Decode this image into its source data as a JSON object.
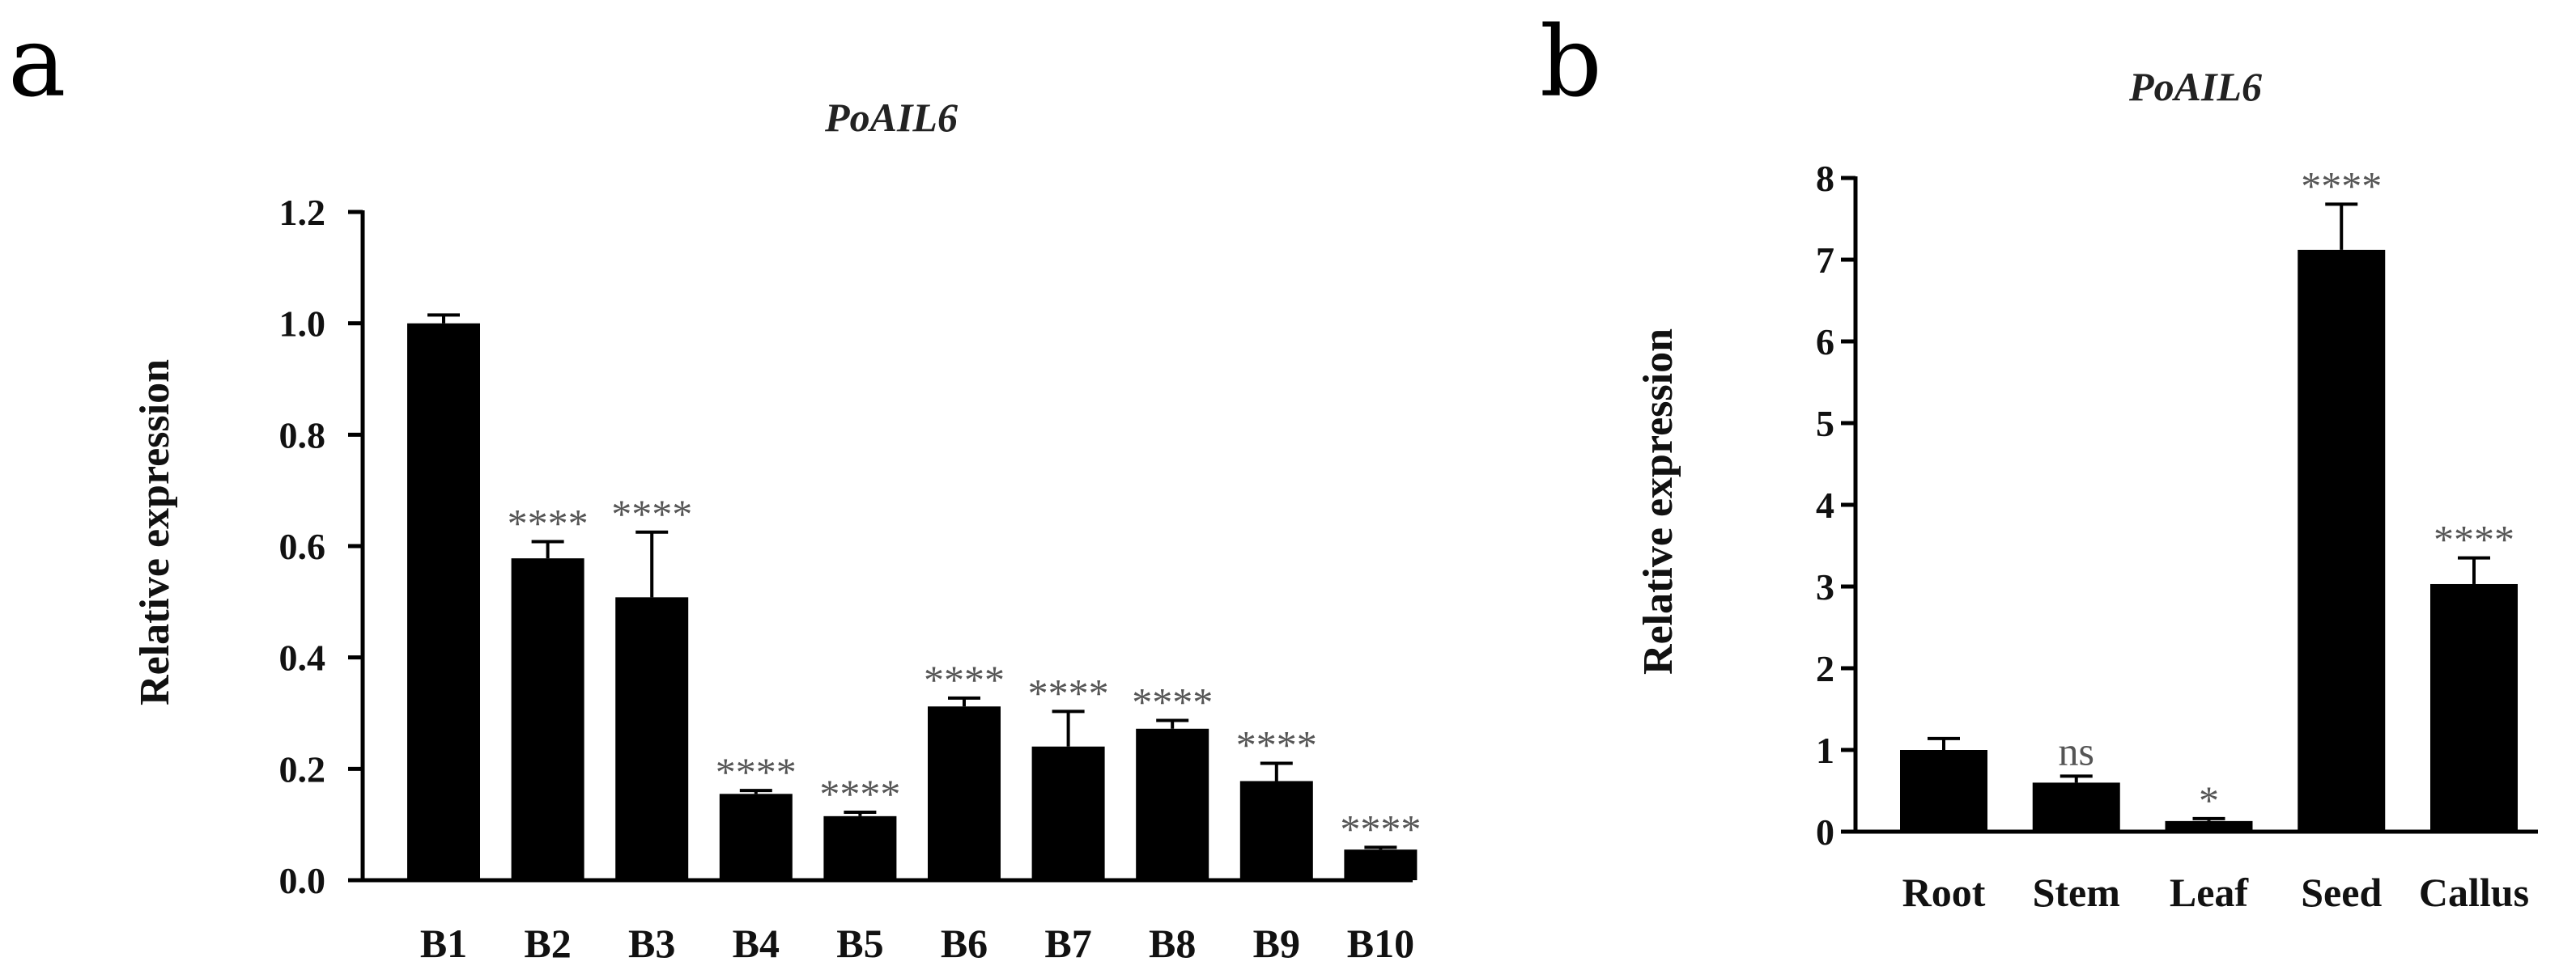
{
  "panels": [
    {
      "letter": "a"
    },
    {
      "letter": "b"
    }
  ],
  "chart_data": [
    {
      "type": "bar",
      "title": "PoAIL6",
      "xlabel": "",
      "ylabel": "Relative expression",
      "ylim": [
        0,
        1.2
      ],
      "yticks": [
        "0.0",
        "0.2",
        "0.4",
        "0.6",
        "0.8",
        "1.0",
        "1.2"
      ],
      "yticks_values": [
        0,
        0.2,
        0.4,
        0.6,
        0.8,
        1.0,
        1.2
      ],
      "categories": [
        "B1",
        "B2",
        "B3",
        "B4",
        "B5",
        "B6",
        "B7",
        "B8",
        "B9",
        "B10"
      ],
      "values": [
        1.0,
        0.578,
        0.508,
        0.155,
        0.115,
        0.312,
        0.24,
        0.272,
        0.178,
        0.055
      ],
      "errors": [
        0.015,
        0.03,
        0.117,
        0.006,
        0.007,
        0.015,
        0.063,
        0.015,
        0.032,
        0.004
      ],
      "significance": [
        "",
        "****",
        "****",
        "****",
        "****",
        "****",
        "****",
        "****",
        "****",
        "****"
      ],
      "bar_color": "#000000"
    },
    {
      "type": "bar",
      "title": "PoAIL6",
      "xlabel": "",
      "ylabel": "Relative expression",
      "ylim": [
        0,
        8
      ],
      "yticks": [
        "0",
        "1",
        "2",
        "3",
        "4",
        "5",
        "6",
        "7",
        "8"
      ],
      "yticks_values": [
        0,
        1,
        2,
        3,
        4,
        5,
        6,
        7,
        8
      ],
      "categories": [
        "Root",
        "Stem",
        "Leaf",
        "Seed",
        "Callus"
      ],
      "values": [
        1.0,
        0.6,
        0.13,
        7.12,
        3.03
      ],
      "errors": [
        0.14,
        0.08,
        0.03,
        0.56,
        0.32
      ],
      "significance": [
        "",
        "ns",
        "*",
        "****",
        "****"
      ],
      "bar_color": "#000000"
    }
  ]
}
